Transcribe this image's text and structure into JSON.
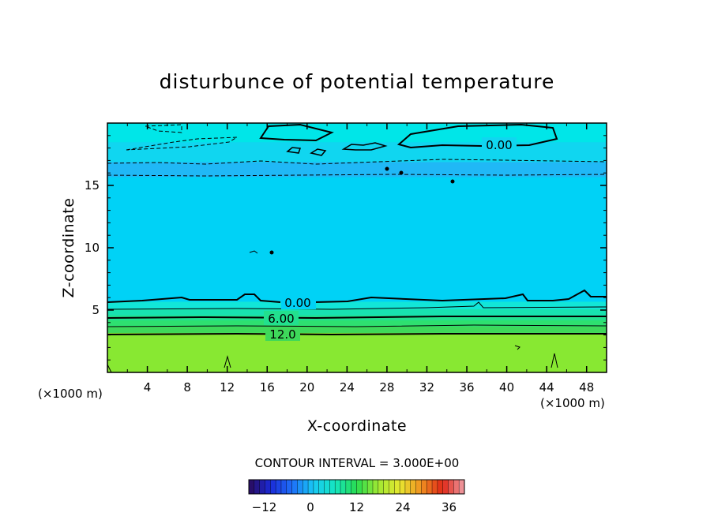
{
  "chart_data": {
    "type": "heatmap",
    "title": "disturbunce of potential temperature",
    "xlabel": "X-coordinate",
    "ylabel": "Z-coordinate",
    "x_unit": "(×1000 m)",
    "x_unit_right": "(×1000 m)",
    "xlim": [
      0,
      50
    ],
    "ylim": [
      0,
      20
    ],
    "x_ticks": [
      4,
      8,
      12,
      16,
      20,
      24,
      28,
      32,
      36,
      40,
      44,
      48
    ],
    "y_ticks": [
      5,
      10,
      15
    ],
    "contour_interval_text": "CONTOUR INTERVAL = 3.000E+00",
    "contour_labels": [
      "0.00",
      "0.00",
      "6.00",
      "12.0"
    ],
    "fields": [
      {
        "z_range": [
          0,
          3.2
        ],
        "value": 14,
        "color": "#88e832"
      },
      {
        "z_range": [
          3.2,
          3.7
        ],
        "value": 11,
        "color": "#3ed85a"
      },
      {
        "z_range": [
          3.7,
          4.2
        ],
        "value": 9,
        "color": "#2ee070"
      },
      {
        "z_range": [
          4.2,
          4.6
        ],
        "value": 7,
        "color": "#22e08e"
      },
      {
        "z_range": [
          4.6,
          5.1
        ],
        "value": 5,
        "color": "#18e2b0"
      },
      {
        "z_range": [
          5.1,
          5.7
        ],
        "value": 2,
        "color": "#12e6d8"
      },
      {
        "z_range": [
          5.7,
          15.7
        ],
        "value": -1,
        "color": "#00d2f6"
      },
      {
        "z_range": [
          15.7,
          16.9
        ],
        "value": -3,
        "color": "#20b8f6"
      },
      {
        "z_range": [
          16.9,
          18.5
        ],
        "value": -1,
        "color": "#10d6f0"
      },
      {
        "z_range": [
          18.5,
          20
        ],
        "value": 0,
        "color": "#00e6e8"
      }
    ],
    "colorbar": {
      "min": -16,
      "max": 40,
      "ticks": [
        -12,
        0,
        12,
        24,
        36
      ],
      "stops": [
        "#2a0a5a",
        "#1a2ad8",
        "#1e6ef8",
        "#18c8f4",
        "#14e6c0",
        "#28dc50",
        "#a0e832",
        "#e8e830",
        "#f09020",
        "#e02818",
        "#f0a0a8"
      ]
    }
  }
}
